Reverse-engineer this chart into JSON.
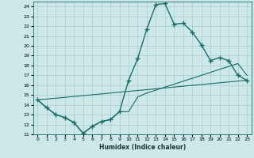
{
  "xlabel": "Humidex (Indice chaleur)",
  "ylabel": "",
  "bg_color": "#cce8e8",
  "grid_color": "#aacccc",
  "line_color": "#1a6b6b",
  "xlim": [
    -0.5,
    23.5
  ],
  "ylim": [
    11,
    24.5
  ],
  "xticks": [
    0,
    1,
    2,
    3,
    4,
    5,
    6,
    7,
    8,
    9,
    10,
    11,
    12,
    13,
    14,
    15,
    16,
    17,
    18,
    19,
    20,
    21,
    22,
    23
  ],
  "yticks": [
    11,
    12,
    13,
    14,
    15,
    16,
    17,
    18,
    19,
    20,
    21,
    22,
    23,
    24
  ],
  "series": [
    {
      "x": [
        0,
        1,
        2,
        3,
        4,
        5,
        6,
        7,
        8,
        9,
        10,
        11,
        12,
        13,
        14,
        15,
        16,
        17,
        18,
        19,
        20,
        21,
        22,
        23
      ],
      "y": [
        14.5,
        13.7,
        13.0,
        12.7,
        12.2,
        11.1,
        11.8,
        12.3,
        12.5,
        13.3,
        16.5,
        18.7,
        21.7,
        24.2,
        24.3,
        22.2,
        22.3,
        21.4,
        20.1,
        18.5,
        18.8,
        18.5,
        17.0,
        16.5
      ],
      "marker": "+",
      "markersize": 4,
      "linewidth": 1.0
    },
    {
      "x": [
        0,
        23
      ],
      "y": [
        14.5,
        16.5
      ],
      "marker": null,
      "linewidth": 0.8
    },
    {
      "x": [
        0,
        1,
        2,
        3,
        4,
        5,
        6,
        7,
        8,
        9,
        10,
        11,
        12,
        13,
        14,
        15,
        16,
        17,
        18,
        19,
        20,
        21,
        22,
        23
      ],
      "y": [
        14.5,
        13.7,
        13.0,
        12.7,
        12.2,
        11.1,
        11.8,
        12.3,
        12.5,
        13.3,
        13.3,
        14.8,
        15.2,
        15.5,
        15.8,
        16.1,
        16.4,
        16.7,
        17.0,
        17.3,
        17.6,
        17.9,
        18.2,
        17.0
      ],
      "marker": null,
      "linewidth": 0.8
    }
  ]
}
